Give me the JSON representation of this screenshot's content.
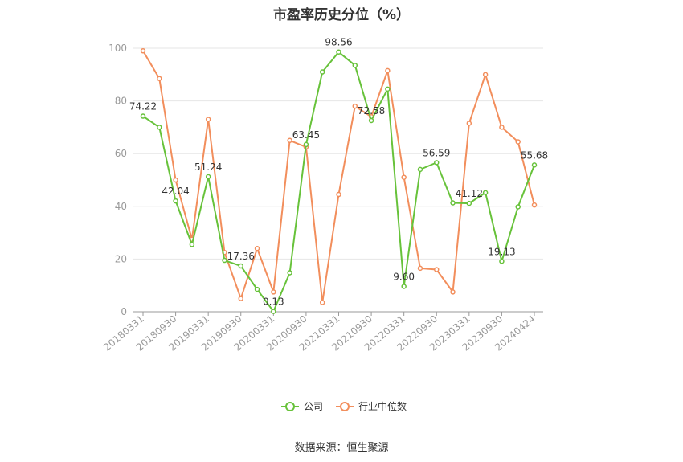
{
  "chart_data": {
    "type": "line",
    "title": "市盈率历史分位（%）",
    "xlabel": "",
    "ylabel": "",
    "ylim": [
      0,
      100
    ],
    "yticks": [
      0,
      20,
      40,
      60,
      80,
      100
    ],
    "grid": true,
    "legend_position": "bottom",
    "x_tick_labels": [
      "20180331",
      "20180930",
      "20190331",
      "20190930",
      "20200331",
      "20200930",
      "20210331",
      "20210930",
      "20220331",
      "20220930",
      "20230331",
      "20230930",
      "20240424"
    ],
    "x": [
      "20180331",
      "20180630",
      "20180930",
      "20181231",
      "20190331",
      "20190630",
      "20190930",
      "20191231",
      "20200331",
      "20200630",
      "20200930",
      "20201231",
      "20210331",
      "20210630",
      "20210930",
      "20211231",
      "20220331",
      "20220630",
      "20220930",
      "20221231",
      "20230331",
      "20230630",
      "20230930",
      "20231231",
      "20240424"
    ],
    "series": [
      {
        "name": "公司",
        "color": "#67c23a",
        "values": [
          74.22,
          70.0,
          42.04,
          25.5,
          51.24,
          19.5,
          17.36,
          8.5,
          0.13,
          14.8,
          63.45,
          91.0,
          98.56,
          93.5,
          72.58,
          84.5,
          9.6,
          54.0,
          56.59,
          41.3,
          41.12,
          45.2,
          19.13,
          39.8,
          55.68
        ],
        "labels": {
          "0": "74.22",
          "2": "42.04",
          "4": "51.24",
          "6": "17.36",
          "8": "0.13",
          "10": "63.45",
          "12": "98.56",
          "14": "72.58",
          "16": "9.60",
          "18": "56.59",
          "20": "41.12",
          "22": "19.13",
          "24": "55.68"
        }
      },
      {
        "name": "行业中位数",
        "color": "#f28e5c",
        "values": [
          99.0,
          88.5,
          50.0,
          27.5,
          73.0,
          22.5,
          5.0,
          24.0,
          7.5,
          65.0,
          62.5,
          3.5,
          44.5,
          78.0,
          74.0,
          91.5,
          51.0,
          16.5,
          16.0,
          7.5,
          71.5,
          90.0,
          70.0,
          64.5,
          40.5
        ]
      }
    ]
  },
  "source": "数据来源：恒生聚源"
}
